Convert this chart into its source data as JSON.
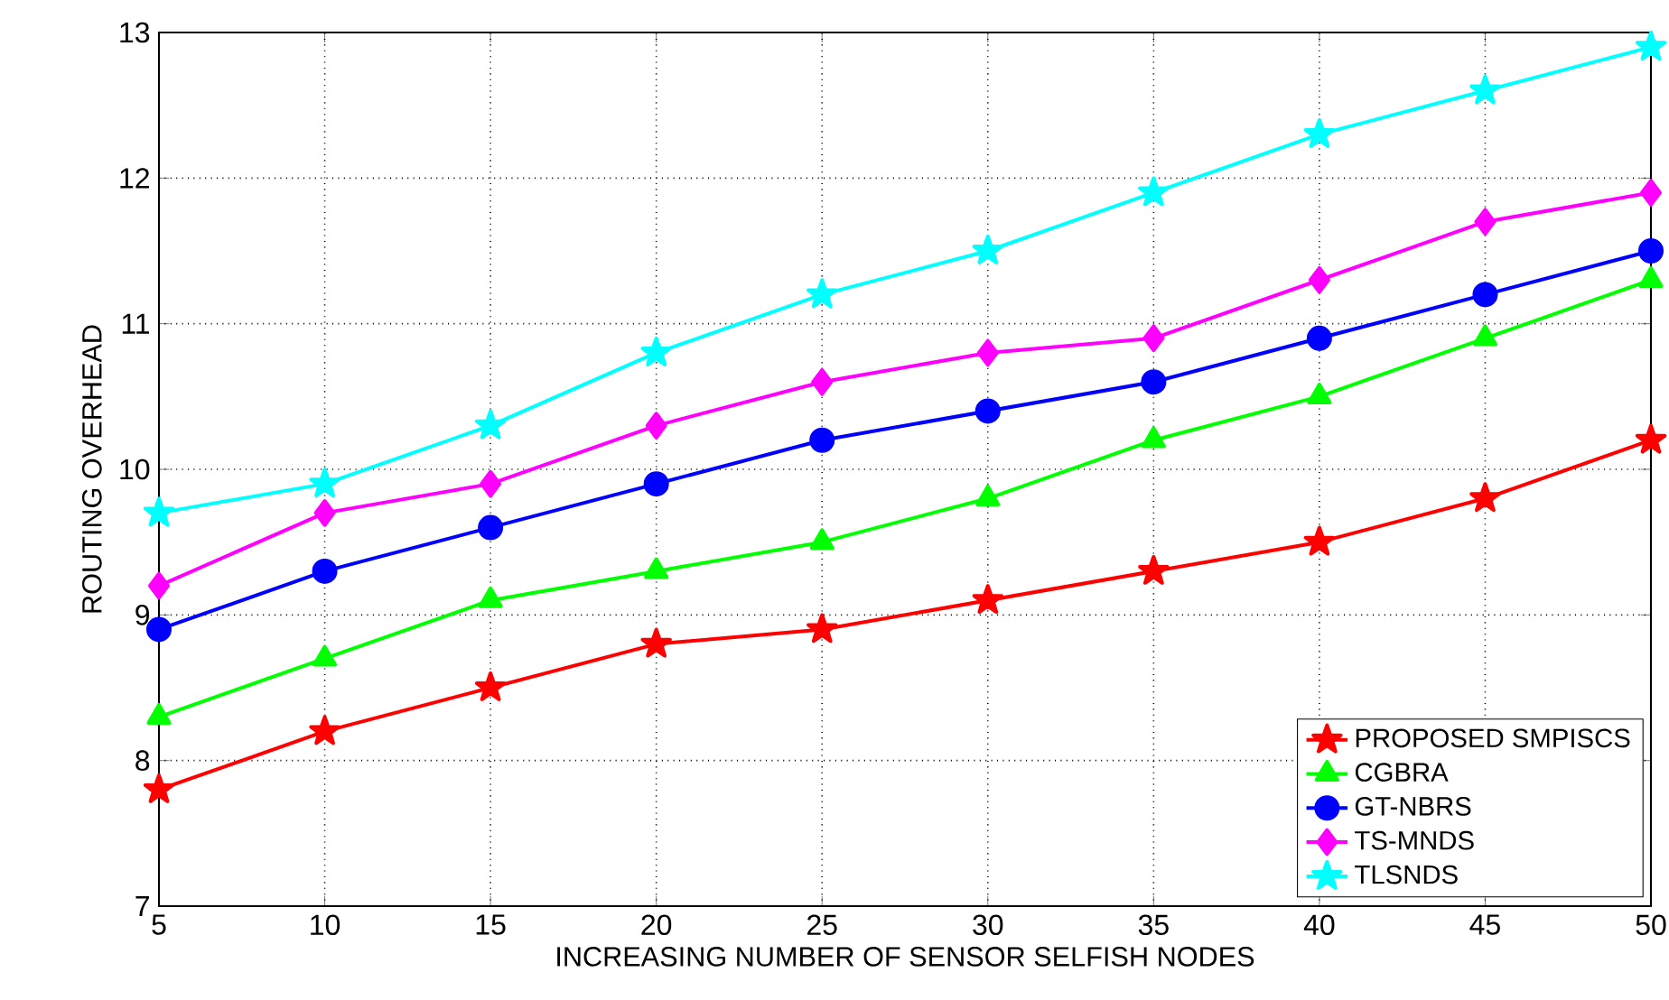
{
  "chart_data": {
    "type": "line",
    "xlabel": "INCREASING NUMBER OF SENSOR SELFISH NODES",
    "ylabel": "ROUTING OVERHEAD",
    "x": [
      5,
      10,
      15,
      20,
      25,
      30,
      35,
      40,
      45,
      50
    ],
    "xlim": [
      5,
      50
    ],
    "xticks": [
      5,
      10,
      15,
      20,
      25,
      30,
      35,
      40,
      45,
      50
    ],
    "ylim": [
      7,
      13
    ],
    "yticks": [
      7,
      8,
      9,
      10,
      11,
      12,
      13
    ],
    "grid": true,
    "legend": "bottom right",
    "line_style": "solid",
    "series": [
      {
        "name": "PROPOSED SMPISCS",
        "color": "#ff0000",
        "marker": "star",
        "values": [
          7.8,
          8.2,
          8.5,
          8.8,
          8.9,
          9.1,
          9.3,
          9.5,
          9.8,
          10.2
        ]
      },
      {
        "name": "CGBRA",
        "color": "#00ff00",
        "marker": "triangle",
        "values": [
          8.3,
          8.7,
          9.1,
          9.3,
          9.5,
          9.8,
          10.2,
          10.5,
          10.9,
          11.3
        ]
      },
      {
        "name": "GT-NBRS",
        "color": "#0000ff",
        "marker": "circle",
        "values": [
          8.9,
          9.3,
          9.6,
          9.9,
          10.2,
          10.4,
          10.6,
          10.9,
          11.2,
          11.5
        ]
      },
      {
        "name": "TS-MNDS",
        "color": "#ff00ff",
        "marker": "diamond",
        "values": [
          9.2,
          9.7,
          9.9,
          10.3,
          10.6,
          10.8,
          10.9,
          11.3,
          11.7,
          11.9
        ]
      },
      {
        "name": "TLSNDS",
        "color": "#00ffff",
        "marker": "star",
        "values": [
          9.7,
          9.9,
          10.3,
          10.8,
          11.2,
          11.5,
          11.9,
          12.3,
          12.6,
          12.9
        ]
      }
    ]
  }
}
